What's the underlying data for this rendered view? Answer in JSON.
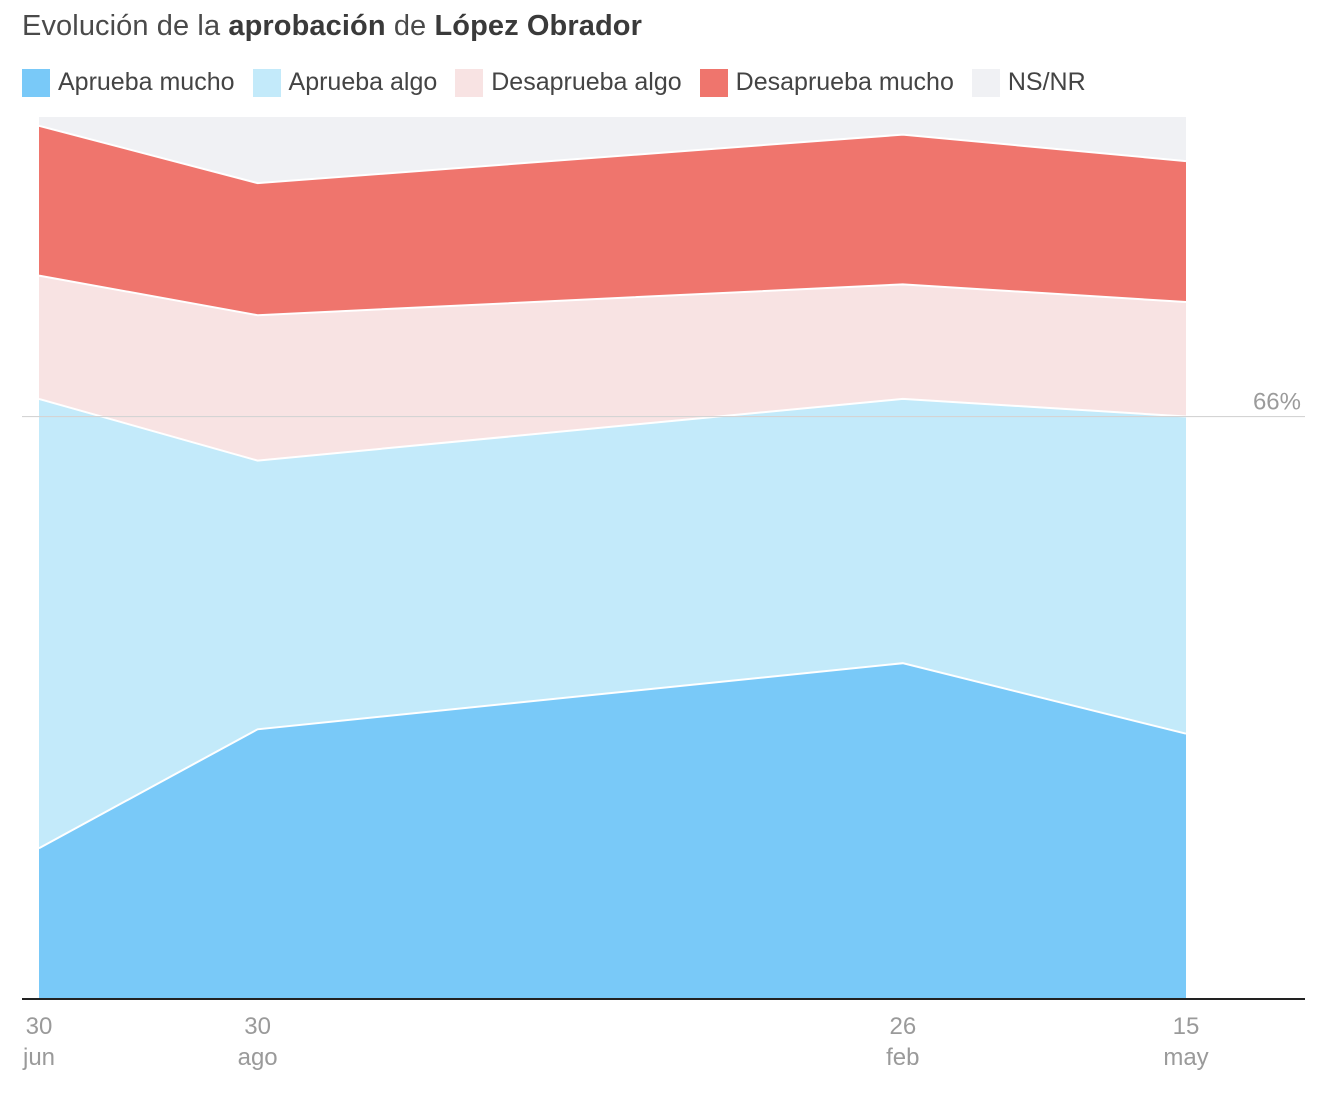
{
  "title": {
    "part1": "Evolución de la ",
    "bold1": "aprobación",
    "part2": " de ",
    "bold2": "López Obrador"
  },
  "reference_line": {
    "value": 66,
    "label": "66%"
  },
  "chart_data": {
    "type": "area",
    "stacked": true,
    "x": [
      "30 jun",
      "30 ago",
      "26 feb",
      "15 may"
    ],
    "tick_labels": [
      {
        "day": "30",
        "month": "jun"
      },
      {
        "day": "30",
        "month": "ago"
      },
      {
        "day": "26",
        "month": "feb"
      },
      {
        "day": "15",
        "month": "may"
      }
    ],
    "x_positions_days": [
      0,
      61,
      241,
      320
    ],
    "x_range_days": [
      0,
      354
    ],
    "ylim": [
      0,
      100
    ],
    "legend_position": "top",
    "grid": false,
    "series": [
      {
        "name": "Aprueba mucho",
        "color": "#79c9f8",
        "values": [
          17,
          30.5,
          38,
          30
        ]
      },
      {
        "name": "Aprueba algo",
        "color": "#c3eafa",
        "values": [
          51,
          30.5,
          30,
          36
        ]
      },
      {
        "name": "Desaprueba algo",
        "color": "#f8e3e3",
        "values": [
          14,
          16.5,
          13,
          13
        ]
      },
      {
        "name": "Desaprueba mucho",
        "color": "#ef756d",
        "values": [
          17,
          15,
          17,
          16
        ]
      },
      {
        "name": "NS/NR",
        "color": "#f0f1f4",
        "values": [
          1,
          7.5,
          2,
          5
        ]
      }
    ]
  }
}
